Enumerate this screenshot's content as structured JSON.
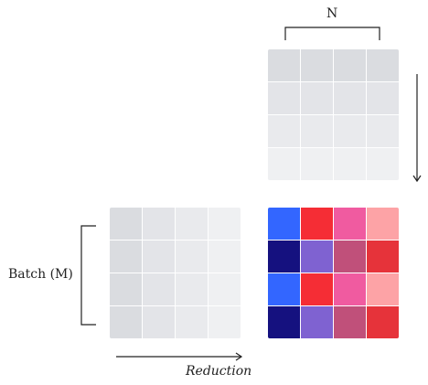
{
  "labels": {
    "n": "N",
    "batch": "Batch (M)",
    "reduction": "Reduction"
  },
  "colors": {
    "matrix_a": [
      [
        "#dadce0",
        "#e3e4e8",
        "#e9eaed",
        "#eff0f2"
      ],
      [
        "#dadce0",
        "#e3e4e8",
        "#e9eaed",
        "#eff0f2"
      ],
      [
        "#dadce0",
        "#e3e4e8",
        "#e9eaed",
        "#eff0f2"
      ],
      [
        "#dadce0",
        "#e3e4e8",
        "#e9eaed",
        "#eff0f2"
      ]
    ],
    "matrix_b": [
      [
        "#dadce0",
        "#dadce0",
        "#dadce0",
        "#dadce0"
      ],
      [
        "#e3e4e8",
        "#e3e4e8",
        "#e3e4e8",
        "#e3e4e8"
      ],
      [
        "#e9eaed",
        "#e9eaed",
        "#e9eaed",
        "#e9eaed"
      ],
      [
        "#eff0f2",
        "#eff0f2",
        "#eff0f2",
        "#eff0f2"
      ]
    ],
    "matrix_c": [
      [
        "#3366ff",
        "#f52d35",
        "#f05ba0",
        "#fda3a6"
      ],
      [
        "#15117f",
        "#7f62d1",
        "#c0507a",
        "#e6333a"
      ],
      [
        "#3366ff",
        "#f52d35",
        "#f05ba0",
        "#fda3a6"
      ],
      [
        "#15117f",
        "#7f62d1",
        "#c0507a",
        "#e6333a"
      ]
    ],
    "stroke": "#222222"
  }
}
